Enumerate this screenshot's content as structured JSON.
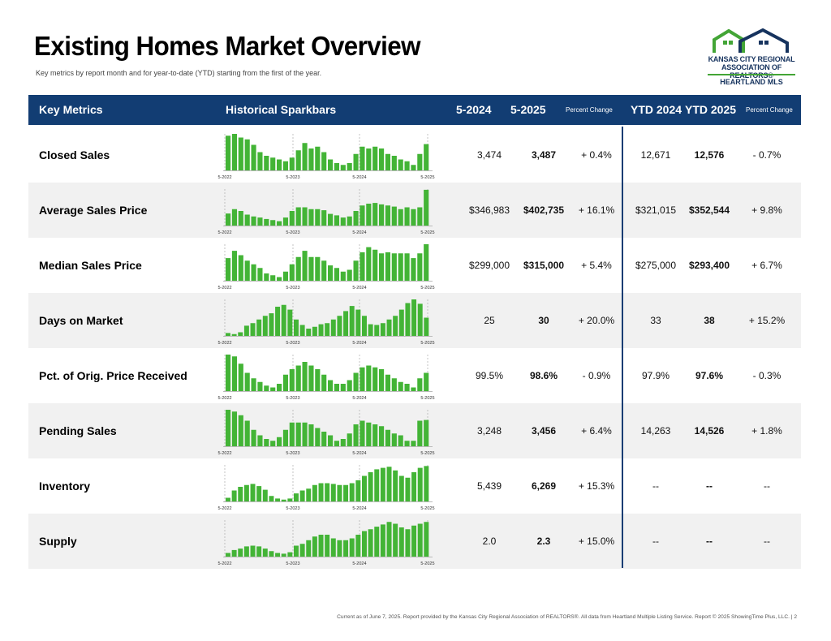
{
  "title": "Existing Homes Market Overview",
  "subtitle": "Key metrics by report month and for year-to-date (YTD) starting from the first of the year.",
  "logo": {
    "line1": "KANSAS CITY REGIONAL",
    "line2": "ASSOCIATION OF REALTORS®",
    "line3": "HEARTLAND MLS",
    "colors": {
      "green": "#43a536",
      "navy": "#16335e"
    }
  },
  "colors": {
    "header_bg": "#123d73",
    "bar": "#43b436",
    "row_alt": "#f1f1f1"
  },
  "header": {
    "metrics": "Key Metrics",
    "sparkbars": "Historical Sparkbars",
    "prev": "5-2024",
    "curr": "5-2025",
    "pct": "Percent Change",
    "ytd_prev": "YTD 2024",
    "ytd_curr": "YTD 2025",
    "ytd_pct": "Percent Change"
  },
  "spark_ticks": [
    "5-2022",
    "5-2023",
    "5-2024",
    "5-2025"
  ],
  "rows": [
    {
      "label": "Closed Sales",
      "prev": "3,474",
      "curr": "3,487",
      "pct": "+ 0.4%",
      "ytd_prev": "12,671",
      "ytd_curr": "12,576",
      "ytd_pct": "- 0.7%",
      "bars": [
        0.95,
        1.0,
        0.9,
        0.85,
        0.7,
        0.5,
        0.4,
        0.35,
        0.3,
        0.25,
        0.35,
        0.55,
        0.75,
        0.6,
        0.65,
        0.5,
        0.3,
        0.2,
        0.15,
        0.2,
        0.45,
        0.65,
        0.6,
        0.65,
        0.6,
        0.45,
        0.4,
        0.3,
        0.25,
        0.15,
        0.45,
        0.72
      ]
    },
    {
      "label": "Average Sales Price",
      "prev": "$346,983",
      "curr": "$402,735",
      "pct": "+ 16.1%",
      "ytd_prev": "$321,015",
      "ytd_curr": "$352,544",
      "ytd_pct": "+ 9.8%",
      "bars": [
        0.33,
        0.45,
        0.4,
        0.3,
        0.25,
        0.22,
        0.18,
        0.15,
        0.12,
        0.22,
        0.4,
        0.5,
        0.5,
        0.45,
        0.45,
        0.42,
        0.32,
        0.28,
        0.22,
        0.25,
        0.4,
        0.55,
        0.6,
        0.62,
        0.58,
        0.55,
        0.52,
        0.45,
        0.5,
        0.45,
        0.5,
        0.98
      ]
    },
    {
      "label": "Median Sales Price",
      "prev": "$299,000",
      "curr": "$315,000",
      "pct": "+ 5.4%",
      "ytd_prev": "$275,000",
      "ytd_curr": "$293,400",
      "ytd_pct": "+ 6.7%",
      "bars": [
        0.62,
        0.82,
        0.7,
        0.55,
        0.45,
        0.35,
        0.2,
        0.15,
        0.1,
        0.25,
        0.45,
        0.65,
        0.82,
        0.65,
        0.65,
        0.55,
        0.42,
        0.35,
        0.25,
        0.3,
        0.55,
        0.78,
        0.92,
        0.85,
        0.75,
        0.78,
        0.75,
        0.75,
        0.75,
        0.62,
        0.75,
        1.0
      ]
    },
    {
      "label": "Days on Market",
      "prev": "25",
      "curr": "30",
      "pct": "+ 20.0%",
      "ytd_prev": "33",
      "ytd_curr": "38",
      "ytd_pct": "+ 15.2%",
      "bars": [
        0.08,
        0.05,
        0.1,
        0.28,
        0.35,
        0.45,
        0.55,
        0.62,
        0.8,
        0.85,
        0.72,
        0.45,
        0.3,
        0.2,
        0.25,
        0.32,
        0.35,
        0.45,
        0.55,
        0.68,
        0.82,
        0.72,
        0.55,
        0.32,
        0.3,
        0.35,
        0.45,
        0.55,
        0.72,
        0.9,
        1.0,
        0.88,
        0.5
      ]
    },
    {
      "label": "Pct. of Orig. Price Received",
      "prev": "99.5%",
      "curr": "98.6%",
      "pct": "- 0.9%",
      "ytd_prev": "97.9%",
      "ytd_curr": "97.6%",
      "ytd_pct": "- 0.3%",
      "bars": [
        1.0,
        0.95,
        0.75,
        0.5,
        0.35,
        0.25,
        0.15,
        0.1,
        0.2,
        0.45,
        0.6,
        0.7,
        0.8,
        0.7,
        0.6,
        0.45,
        0.3,
        0.2,
        0.2,
        0.3,
        0.5,
        0.65,
        0.7,
        0.65,
        0.6,
        0.45,
        0.35,
        0.25,
        0.2,
        0.1,
        0.35,
        0.5
      ]
    },
    {
      "label": "Pending Sales",
      "prev": "3,248",
      "curr": "3,456",
      "pct": "+ 6.4%",
      "ytd_prev": "14,263",
      "ytd_curr": "14,526",
      "ytd_pct": "+ 1.8%",
      "bars": [
        1.0,
        0.95,
        0.85,
        0.7,
        0.45,
        0.3,
        0.2,
        0.15,
        0.25,
        0.45,
        0.65,
        0.65,
        0.65,
        0.6,
        0.5,
        0.4,
        0.3,
        0.15,
        0.2,
        0.35,
        0.6,
        0.7,
        0.65,
        0.6,
        0.55,
        0.45,
        0.35,
        0.3,
        0.15,
        0.15,
        0.7,
        0.72
      ]
    },
    {
      "label": "Inventory",
      "prev": "5,439",
      "curr": "6,269",
      "pct": "+ 15.3%",
      "ytd_prev": "--",
      "ytd_curr": "--",
      "ytd_pct": "--",
      "bars": [
        0.1,
        0.3,
        0.4,
        0.45,
        0.48,
        0.42,
        0.32,
        0.15,
        0.08,
        0.05,
        0.08,
        0.22,
        0.3,
        0.35,
        0.45,
        0.5,
        0.5,
        0.48,
        0.45,
        0.45,
        0.5,
        0.58,
        0.7,
        0.8,
        0.88,
        0.92,
        0.95,
        0.85,
        0.7,
        0.65,
        0.8,
        0.92,
        0.97
      ]
    },
    {
      "label": "Supply",
      "prev": "2.0",
      "curr": "2.3",
      "pct": "+ 15.0%",
      "ytd_prev": "--",
      "ytd_curr": "--",
      "ytd_pct": "--",
      "bars": [
        0.1,
        0.18,
        0.22,
        0.28,
        0.3,
        0.28,
        0.22,
        0.15,
        0.1,
        0.08,
        0.12,
        0.3,
        0.35,
        0.45,
        0.55,
        0.6,
        0.6,
        0.5,
        0.45,
        0.45,
        0.5,
        0.6,
        0.7,
        0.75,
        0.82,
        0.88,
        0.95,
        0.9,
        0.8,
        0.75,
        0.85,
        0.9,
        0.95
      ]
    }
  ],
  "footer": "Current as of June 7, 2025.  Report provided by the Kansas City Regional Association of REALTORS®. All data from Heartland Multiple Listing Service. Report © 2025 ShowingTime Plus, LLC.  |  2"
}
